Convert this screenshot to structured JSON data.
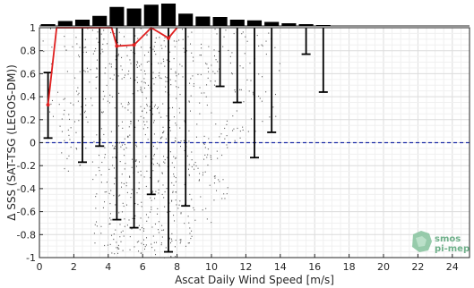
{
  "chart_data": {
    "type": "scatter",
    "title": "",
    "xlabel": "Ascat Daily Wind Speed [m/s]",
    "ylabel": "Δ SSS (SAT-TSG (LEGOS-DM))",
    "xlim": [
      0,
      25
    ],
    "ylim": [
      -1,
      1
    ],
    "x_ticks": [
      0,
      2,
      4,
      6,
      8,
      10,
      12,
      14,
      16,
      18,
      20,
      22,
      24
    ],
    "y_ticks": [
      1,
      0.8,
      0.6,
      0.4,
      0.2,
      0,
      -0.2,
      -0.4,
      -0.6,
      -0.8,
      -1
    ],
    "x_tick_labels": [
      "0",
      "2",
      "4",
      "6",
      "8",
      "10",
      "12",
      "14",
      "16",
      "18",
      "20",
      "22",
      "24"
    ],
    "y_tick_labels": [
      "1",
      "0.8",
      "0.6",
      "0.4",
      "0.2",
      "0",
      "-0.2",
      "-0.4",
      "-0.6",
      "-0.8",
      "-1"
    ],
    "grid": true,
    "reference_line": {
      "y": 0,
      "style": "dashed",
      "color": "#1f2fa8"
    },
    "histogram": {
      "bin_centers": [
        0.5,
        1.5,
        2.5,
        3.5,
        4.5,
        5.5,
        6.5,
        7.5,
        8.5,
        9.5,
        10.5,
        11.5,
        12.5,
        13.5,
        14.5,
        15.5,
        16.5
      ],
      "relative_counts": [
        0.08,
        0.22,
        0.28,
        0.45,
        0.85,
        0.78,
        0.95,
        1.0,
        0.55,
        0.42,
        0.4,
        0.28,
        0.25,
        0.18,
        0.12,
        0.08,
        0.04
      ]
    },
    "error_bars": [
      {
        "x": 0.5,
        "upper": 0.61,
        "lower": 0.04
      },
      {
        "x": 2.5,
        "upper": 1.0,
        "lower": -0.17
      },
      {
        "x": 3.5,
        "upper": 1.0,
        "lower": -0.03
      },
      {
        "x": 4.5,
        "upper": 1.0,
        "lower": -0.67
      },
      {
        "x": 5.5,
        "upper": 1.0,
        "lower": -0.74
      },
      {
        "x": 6.5,
        "upper": 1.0,
        "lower": -0.45
      },
      {
        "x": 7.5,
        "upper": 1.0,
        "lower": -0.95
      },
      {
        "x": 8.5,
        "upper": 1.0,
        "lower": -0.55
      },
      {
        "x": 10.5,
        "upper": 1.0,
        "lower": 0.49
      },
      {
        "x": 11.5,
        "upper": 1.0,
        "lower": 0.35
      },
      {
        "x": 12.5,
        "upper": 1.0,
        "lower": -0.13
      },
      {
        "x": 13.5,
        "upper": 1.0,
        "lower": 0.09
      },
      {
        "x": 15.5,
        "upper": 1.0,
        "lower": 0.77
      },
      {
        "x": 16.5,
        "upper": 1.0,
        "lower": 0.44
      }
    ],
    "mean_line": {
      "color": "#e02020",
      "points": [
        {
          "x": 0.5,
          "y": 0.33
        },
        {
          "x": 1.0,
          "y": 1.0
        },
        {
          "x": 4.2,
          "y": 1.0
        },
        {
          "x": 4.5,
          "y": 0.84
        },
        {
          "x": 5.5,
          "y": 0.85
        },
        {
          "x": 6.5,
          "y": 1.0
        },
        {
          "x": 7.5,
          "y": 0.91
        },
        {
          "x": 8.0,
          "y": 1.0
        }
      ]
    },
    "scatter_columns": [
      {
        "x": 0.5,
        "y_min": 0.05,
        "y_max": 1.0,
        "density": 10
      },
      {
        "x": 1.5,
        "y_min": -0.25,
        "y_max": 1.0,
        "density": 30
      },
      {
        "x": 2.5,
        "y_min": -0.2,
        "y_max": 1.0,
        "density": 45
      },
      {
        "x": 3.5,
        "y_min": -0.95,
        "y_max": 1.0,
        "density": 70
      },
      {
        "x": 4.5,
        "y_min": -0.97,
        "y_max": 1.0,
        "density": 110
      },
      {
        "x": 5.5,
        "y_min": -0.98,
        "y_max": 1.0,
        "density": 110
      },
      {
        "x": 6.5,
        "y_min": -0.97,
        "y_max": 1.0,
        "density": 120
      },
      {
        "x": 7.5,
        "y_min": -1.0,
        "y_max": 1.0,
        "density": 125
      },
      {
        "x": 8.5,
        "y_min": -0.9,
        "y_max": 1.0,
        "density": 80
      },
      {
        "x": 9.5,
        "y_min": -0.7,
        "y_max": 1.0,
        "density": 55
      },
      {
        "x": 10.5,
        "y_min": -0.5,
        "y_max": 1.0,
        "density": 45
      },
      {
        "x": 11.5,
        "y_min": 0.0,
        "y_max": 1.0,
        "density": 30
      },
      {
        "x": 12.5,
        "y_min": 0.1,
        "y_max": 1.0,
        "density": 22
      },
      {
        "x": 13.5,
        "y_min": 0.2,
        "y_max": 1.0,
        "density": 12
      }
    ],
    "logo": {
      "text_lines": [
        "smos",
        "pi-mep"
      ],
      "color": "#6fb08a"
    }
  }
}
